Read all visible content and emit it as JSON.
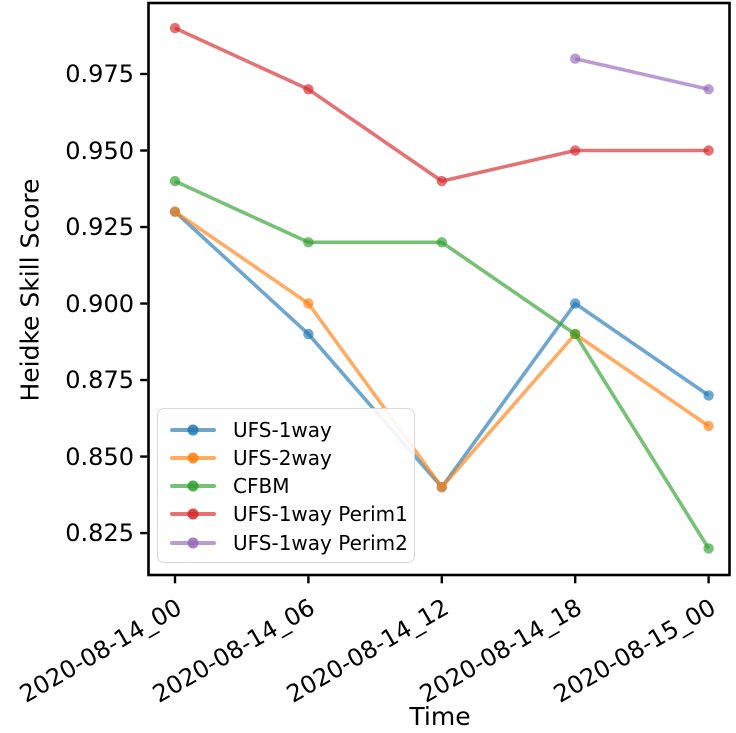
{
  "chart_data": {
    "type": "line",
    "title": "",
    "xlabel": "Time",
    "ylabel": "Heidke Skill Score",
    "categories": [
      "2020-08-14_00",
      "2020-08-14_06",
      "2020-08-14_12",
      "2020-08-14_18",
      "2020-08-15_00"
    ],
    "yticklabels": [
      "0.975",
      "0.950",
      "0.925",
      "0.900",
      "0.875",
      "0.850",
      "0.825"
    ],
    "ylim": [
      0.8113,
      0.9982
    ],
    "grid": false,
    "marker": "circle",
    "line_alpha": 0.65,
    "legend_position": "lower left",
    "series": [
      {
        "name": "UFS-1way",
        "color": "#1f77b4",
        "values": [
          0.93,
          0.89,
          0.84,
          0.9,
          0.87
        ]
      },
      {
        "name": "UFS-2way",
        "color": "#ff7f0e",
        "values": [
          0.93,
          0.9,
          0.84,
          0.89,
          0.86
        ]
      },
      {
        "name": "CFBM",
        "color": "#2ca02c",
        "values": [
          0.94,
          0.92,
          0.92,
          0.89,
          0.82
        ]
      },
      {
        "name": "UFS-1way Perim1",
        "color": "#d62728",
        "values": [
          0.99,
          0.97,
          0.94,
          0.95,
          0.95
        ]
      },
      {
        "name": "UFS-1way Perim2",
        "color": "#9467bd",
        "values": [
          null,
          null,
          null,
          0.98,
          0.97
        ]
      }
    ],
    "axis_color": "#000000",
    "background_color": "#ffffff"
  }
}
